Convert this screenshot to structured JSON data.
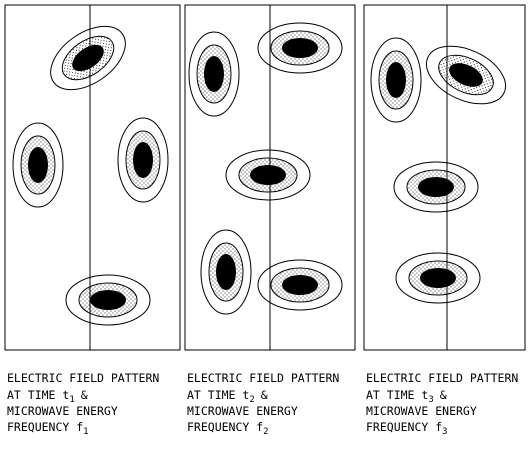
{
  "panels": [
    {
      "caption": {
        "line1": "ELECTRIC FIELD PATTERN",
        "line2": {
          "text": "AT TIME t",
          "sub": "1",
          "suffix": "&"
        },
        "line3": "MICROWAVE ENERGY",
        "line4": {
          "text": "FREQUENCY f",
          "sub": "1"
        }
      }
    },
    {
      "caption": {
        "line1": "ELECTRIC FIELD PATTERN",
        "line2": {
          "text": "AT TIME t",
          "sub": "2",
          "suffix": "&"
        },
        "line3": "MICROWAVE ENERGY",
        "line4": {
          "text": "FREQUENCY f",
          "sub": "2"
        }
      }
    },
    {
      "caption": {
        "line1": "ELECTRIC FIELD PATTERN",
        "line2": {
          "text": "AT TIME t",
          "sub": "3",
          "suffix": "&"
        },
        "line3": "MICROWAVE ENERGY",
        "line4": {
          "text": "FREQUENCY f",
          "sub": "3"
        }
      }
    }
  ]
}
